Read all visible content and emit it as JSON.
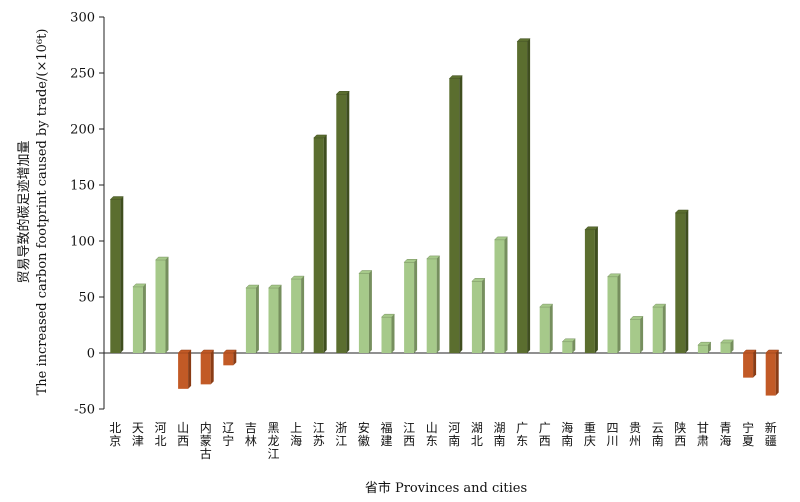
{
  "chart_data": {
    "type": "bar",
    "title": "",
    "xlabel": "省市  Provinces and cities",
    "ylabel_zh": "贸易导致的碳足迹增加量",
    "ylabel_en": "The increased carbon footprint caused by trade/(×10⁶t)",
    "ylim": [
      -50,
      300
    ],
    "yticks": [
      -50,
      0,
      50,
      100,
      150,
      200,
      250,
      300
    ],
    "grid": false,
    "legend": "none",
    "categories": [
      "北京",
      "天津",
      "河北",
      "山西",
      "内蒙古",
      "辽宁",
      "吉林",
      "黑龙江",
      "上海",
      "江苏",
      "浙江",
      "安徽",
      "福建",
      "江西",
      "山东",
      "河南",
      "湖北",
      "湖南",
      "广东",
      "广西",
      "海南",
      "重庆",
      "四川",
      "贵州",
      "云南",
      "陕西",
      "甘肃",
      "青海",
      "宁夏",
      "新疆"
    ],
    "values": [
      137,
      59,
      83,
      -32,
      -28,
      -11,
      58,
      58,
      66,
      192,
      231,
      71,
      32,
      81,
      84,
      245,
      64,
      101,
      278,
      41,
      10,
      110,
      68,
      30,
      41,
      125,
      7,
      9,
      -22,
      -38
    ],
    "groups": [
      "high",
      "mid",
      "mid",
      "neg",
      "neg",
      "neg",
      "mid",
      "mid",
      "mid",
      "high",
      "high",
      "mid",
      "mid",
      "mid",
      "mid",
      "high",
      "mid",
      "mid",
      "high",
      "mid",
      "mid",
      "high",
      "mid",
      "mid",
      "mid",
      "high",
      "mid",
      "mid",
      "neg",
      "neg"
    ],
    "colors": {
      "high": "#5b6e2f",
      "high_side": "#3f4e1f",
      "mid": "#a6c98a",
      "mid_side": "#768f5e",
      "neg": "#c25a26",
      "neg_side": "#8a3c15"
    }
  }
}
